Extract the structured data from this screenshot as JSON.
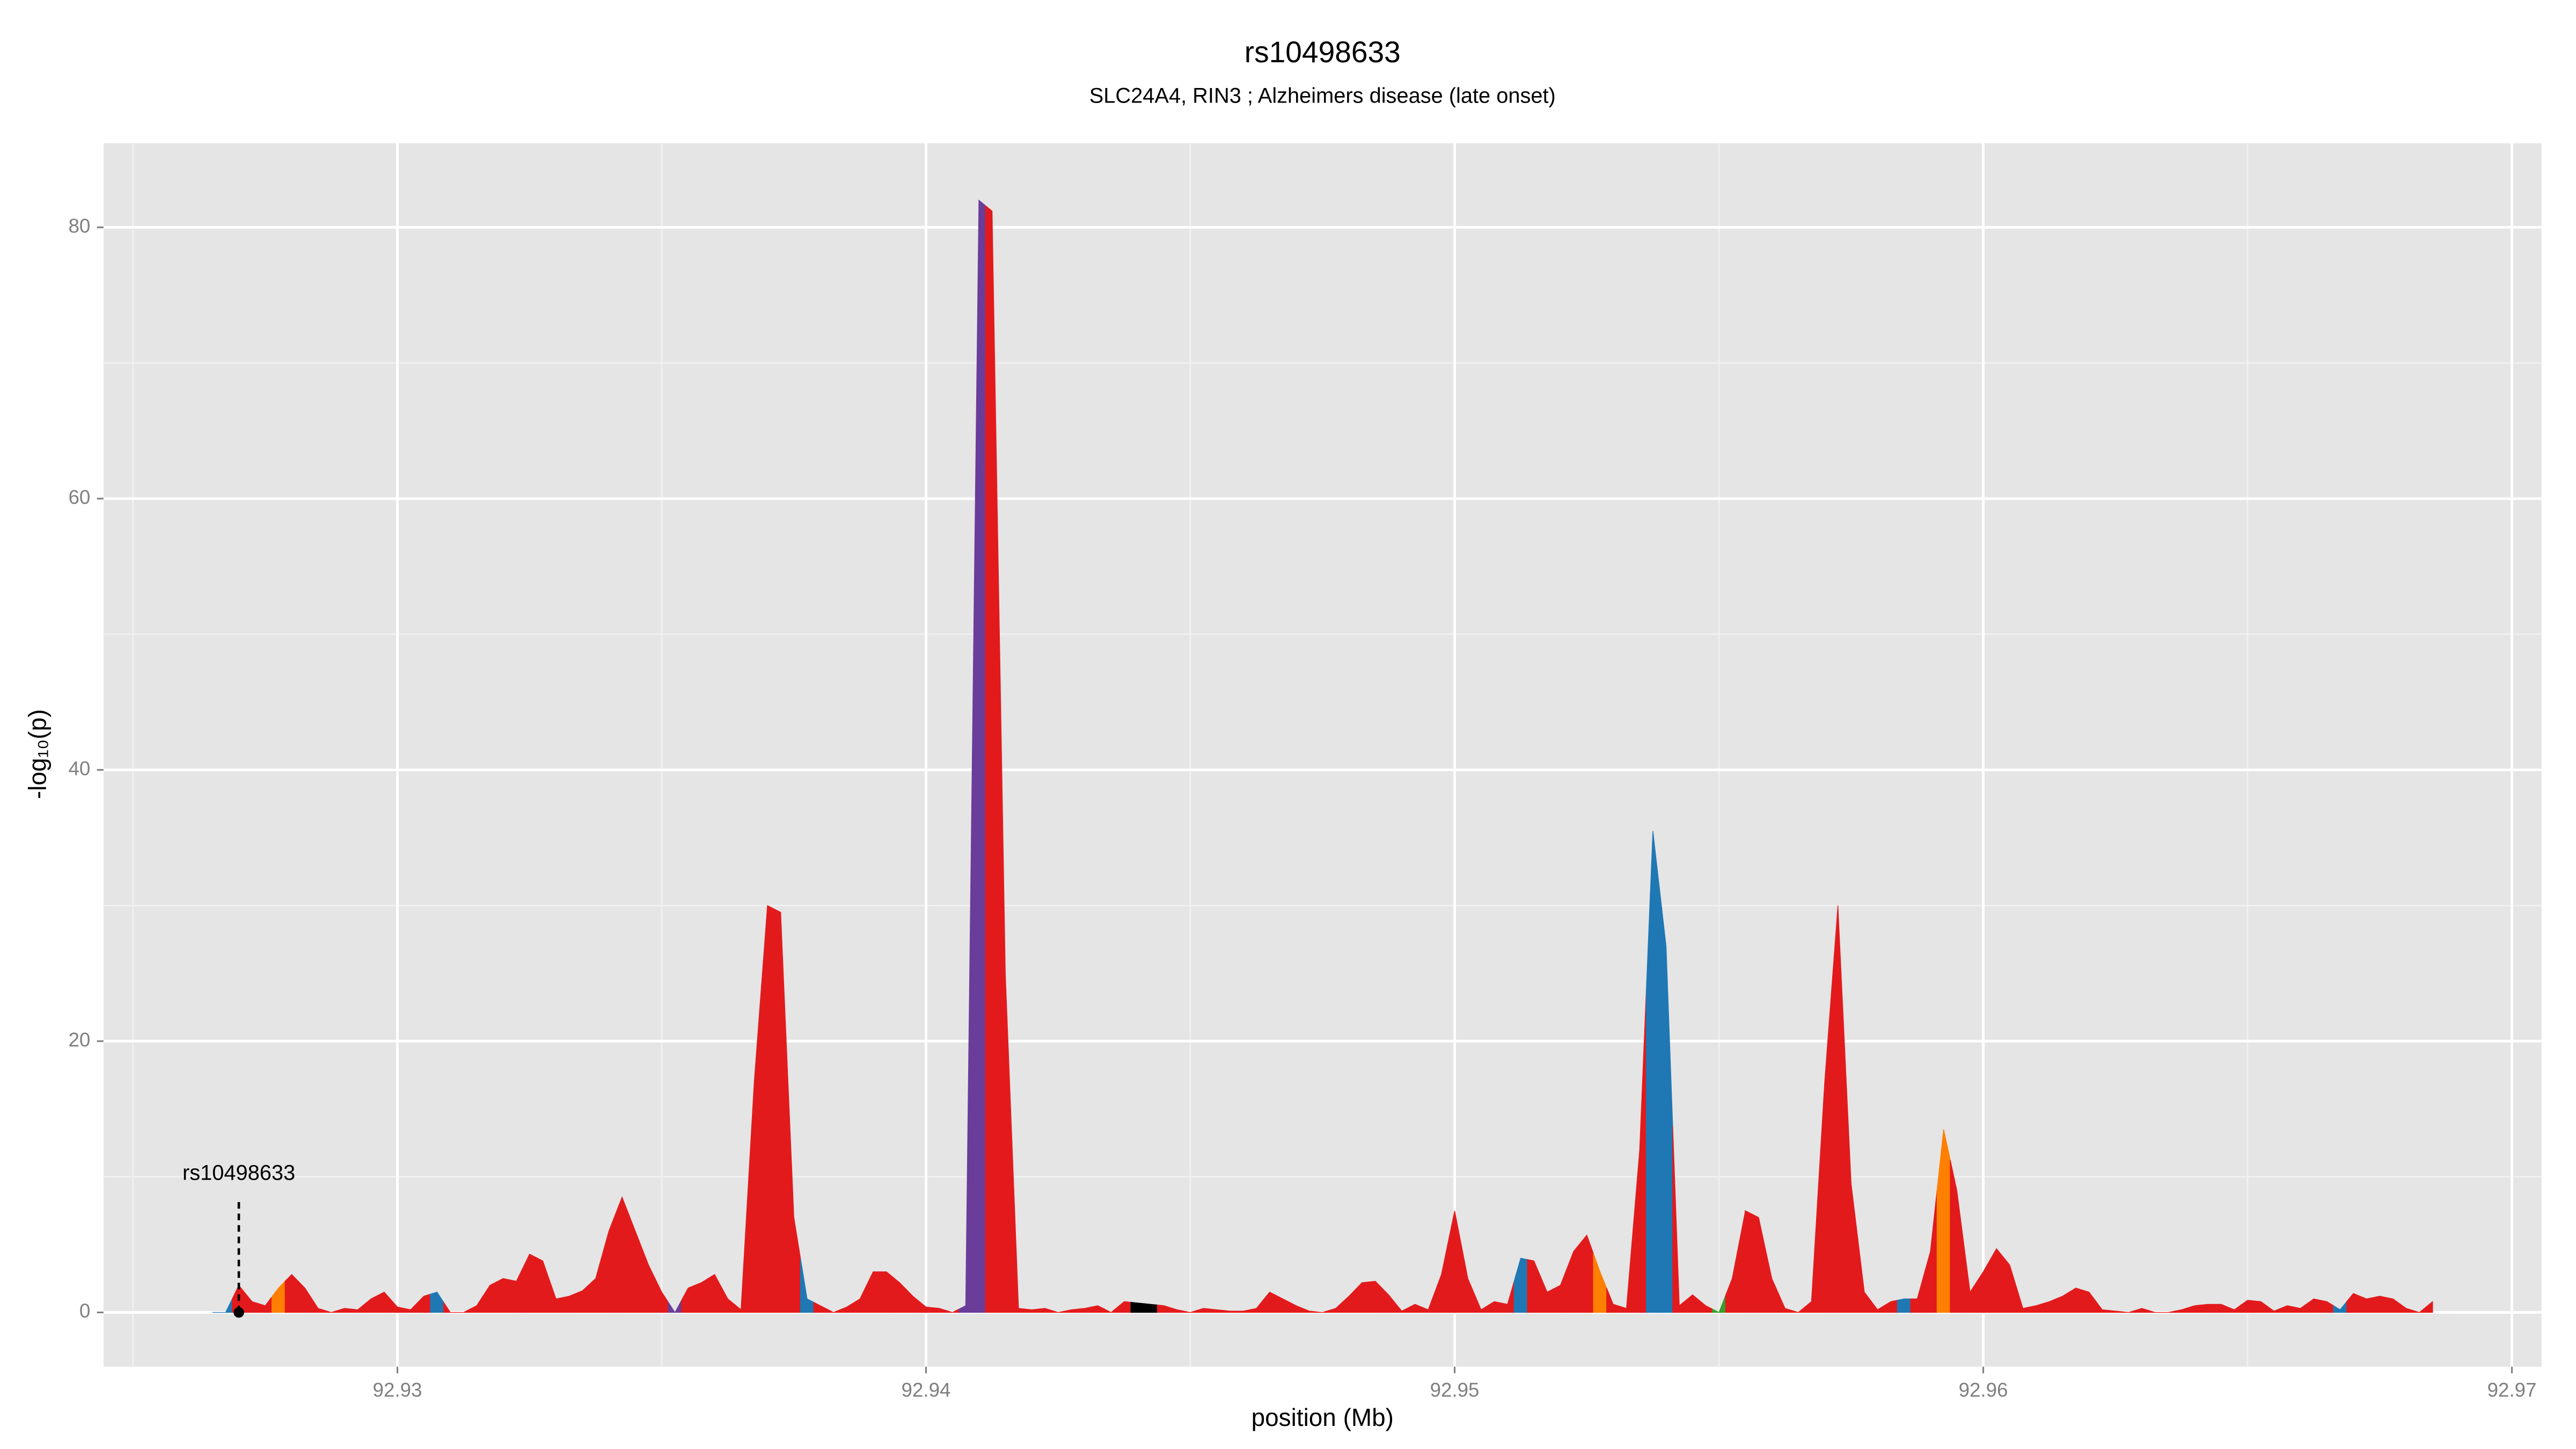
{
  "chart_data": {
    "type": "area",
    "title": "rs10498633",
    "subtitle": "SLC24A4, RIN3 ; Alzheimers disease (late onset)",
    "x_label": "position (Mb)",
    "y_label": "-log₁₀(p)",
    "xlim": [
      92.92444,
      92.97056
    ],
    "ylim": [
      -4.0,
      86.2
    ],
    "xticks": [
      92.93,
      92.94,
      92.95,
      92.96,
      92.97
    ],
    "yticks": [
      0,
      20,
      40,
      60,
      80
    ],
    "x_minor_grid": [
      92.925,
      92.935,
      92.945,
      92.955,
      92.965
    ],
    "y_minor_grid": [
      10,
      30,
      50,
      70
    ],
    "grid": true,
    "annotation": {
      "label": "rs10498633",
      "x": 92.927,
      "y": 0
    },
    "x": [
      92.9265,
      92.92675,
      92.927,
      92.92725,
      92.9275,
      92.92775,
      92.928,
      92.92825,
      92.9285,
      92.92875,
      92.929,
      92.92925,
      92.9295,
      92.92975,
      92.93,
      92.93025,
      92.9305,
      92.93075,
      92.931,
      92.93125,
      92.9315,
      92.93175,
      92.932,
      92.93225,
      92.9325,
      92.93275,
      92.933,
      92.93325,
      92.9335,
      92.93375,
      92.934,
      92.93425,
      92.9345,
      92.93475,
      92.935,
      92.93525,
      92.9355,
      92.93575,
      92.936,
      92.93625,
      92.9365,
      92.93675,
      92.937,
      92.93725,
      92.9375,
      92.93775,
      92.938,
      92.93825,
      92.9385,
      92.93875,
      92.939,
      92.93925,
      92.9395,
      92.93975,
      92.94,
      92.94025,
      92.9405,
      92.94075,
      92.941,
      92.94125,
      92.9415,
      92.94175,
      92.942,
      92.94225,
      92.9425,
      92.94275,
      92.943,
      92.94325,
      92.9435,
      92.94375,
      92.944,
      92.94425,
      92.9445,
      92.94475,
      92.945,
      92.94525,
      92.9455,
      92.94575,
      92.946,
      92.94625,
      92.9465,
      92.94675,
      92.947,
      92.94725,
      92.9475,
      92.94775,
      92.948,
      92.94825,
      92.9485,
      92.94875,
      92.949,
      92.94925,
      92.9495,
      92.94975,
      92.95,
      92.95025,
      92.9505,
      92.95075,
      92.951,
      92.95125,
      92.9515,
      92.95175,
      92.952,
      92.95225,
      92.9525,
      92.95275,
      92.953,
      92.95325,
      92.9535,
      92.95375,
      92.954,
      92.95425,
      92.9545,
      92.95475,
      92.955,
      92.95525,
      92.9555,
      92.95575,
      92.956,
      92.95625,
      92.9565,
      92.95675,
      92.957,
      92.95725,
      92.9575,
      92.95775,
      92.958,
      92.95825,
      92.9585,
      92.95875,
      92.959,
      92.95925,
      92.9595,
      92.95975,
      92.96,
      92.96025,
      92.9605,
      92.96075,
      92.961,
      92.96125,
      92.9615,
      92.96175,
      92.962,
      92.96225,
      92.9625,
      92.96275,
      92.963,
      92.96325,
      92.9635,
      92.96375,
      92.964,
      92.96425,
      92.9645,
      92.96475,
      92.965,
      92.96525,
      92.9655,
      92.96575,
      92.966,
      92.96625,
      92.9665,
      92.96675,
      92.967,
      92.96725,
      92.9675,
      92.96775,
      92.968,
      92.96825,
      92.9685
    ],
    "values": [
      0,
      0,
      2,
      0.8,
      0.5,
      1.8,
      2.8,
      1.8,
      0.3,
      0,
      0.3,
      0.2,
      1,
      1.5,
      0.4,
      0.2,
      1.2,
      1.5,
      0,
      0,
      0.5,
      2,
      2.5,
      2.3,
      4.3,
      3.8,
      1,
      1.2,
      1.6,
      2.5,
      6,
      8.5,
      6,
      3.5,
      1.5,
      0,
      1.8,
      2.2,
      2.8,
      1,
      0.2,
      17,
      30,
      29.5,
      7,
      1,
      0.5,
      0,
      0.4,
      1,
      3,
      3,
      2.2,
      1.2,
      0.4,
      0.3,
      0,
      0.5,
      82,
      81.2,
      25,
      0.3,
      0.2,
      0.3,
      0,
      0.2,
      0.3,
      0.5,
      0,
      0.8,
      0.7,
      0.6,
      0.5,
      0.2,
      0,
      0.3,
      0.2,
      0.1,
      0.1,
      0.3,
      1.5,
      1,
      0.5,
      0.1,
      0,
      0.3,
      1.2,
      2.2,
      2.3,
      1.3,
      0.1,
      0.6,
      0.2,
      2.8,
      7.5,
      2.5,
      0.2,
      0.8,
      0.6,
      4,
      3.8,
      1.5,
      2,
      4.5,
      5.7,
      3,
      0.6,
      0.3,
      12,
      35.5,
      27,
      0.5,
      1.3,
      0.5,
      0,
      2.5,
      7.5,
      7,
      2.5,
      0.3,
      0,
      0.8,
      17,
      30,
      9.5,
      1.5,
      0.2,
      0.8,
      1,
      1,
      4.5,
      13.5,
      9,
      1.5,
      3,
      4.7,
      3.5,
      0.3,
      0.5,
      0.8,
      1.2,
      1.8,
      1.5,
      0.2,
      0.1,
      0,
      0.3,
      0,
      0,
      0.2,
      0.5,
      0.6,
      0.6,
      0.2,
      0.9,
      0.8,
      0.1,
      0.5,
      0.3,
      1,
      0.8,
      0.2,
      1.4,
      1,
      1.2,
      1,
      0.3,
      0,
      0.8
    ],
    "colors": [
      "#1f78b4",
      "#1f78b4",
      "#e31a1c",
      "#e31a1c",
      "#e31a1c",
      "#ff7f00",
      "#e31a1c",
      "#e31a1c",
      "#e31a1c",
      "#e31a1c",
      "#e31a1c",
      "#e31a1c",
      "#e31a1c",
      "#e31a1c",
      "#e31a1c",
      "#e31a1c",
      "#e31a1c",
      "#1f78b4",
      "#e31a1c",
      "#e31a1c",
      "#e31a1c",
      "#e31a1c",
      "#e31a1c",
      "#e31a1c",
      "#e31a1c",
      "#e31a1c",
      "#e31a1c",
      "#e31a1c",
      "#e31a1c",
      "#e31a1c",
      "#e31a1c",
      "#e31a1c",
      "#e31a1c",
      "#e31a1c",
      "#e31a1c",
      "#6a3d9a",
      "#e31a1c",
      "#e31a1c",
      "#e31a1c",
      "#e31a1c",
      "#e31a1c",
      "#e31a1c",
      "#e31a1c",
      "#e31a1c",
      "#e31a1c",
      "#1f78b4",
      "#e31a1c",
      "#e31a1c",
      "#e31a1c",
      "#e31a1c",
      "#e31a1c",
      "#e31a1c",
      "#e31a1c",
      "#e31a1c",
      "#e31a1c",
      "#e31a1c",
      "#e31a1c",
      "#6a3d9a",
      "#6a3d9a",
      "#e31a1c",
      "#e31a1c",
      "#e31a1c",
      "#e31a1c",
      "#e31a1c",
      "#e31a1c",
      "#e31a1c",
      "#e31a1c",
      "#e31a1c",
      "#e31a1c",
      "#e31a1c",
      "#000000",
      "#000000",
      "#e31a1c",
      "#e31a1c",
      "#e31a1c",
      "#e31a1c",
      "#e31a1c",
      "#e31a1c",
      "#e31a1c",
      "#e31a1c",
      "#e31a1c",
      "#e31a1c",
      "#e31a1c",
      "#e31a1c",
      "#e31a1c",
      "#e31a1c",
      "#e31a1c",
      "#e31a1c",
      "#e31a1c",
      "#e31a1c",
      "#e31a1c",
      "#e31a1c",
      "#e31a1c",
      "#e31a1c",
      "#e31a1c",
      "#e31a1c",
      "#e31a1c",
      "#e31a1c",
      "#e31a1c",
      "#1f78b4",
      "#e31a1c",
      "#e31a1c",
      "#e31a1c",
      "#e31a1c",
      "#e31a1c",
      "#ff7f00",
      "#e31a1c",
      "#e31a1c",
      "#e31a1c",
      "#1f78b4",
      "#1f78b4",
      "#e31a1c",
      "#e31a1c",
      "#e31a1c",
      "#33a02c",
      "#e31a1c",
      "#e31a1c",
      "#e31a1c",
      "#e31a1c",
      "#e31a1c",
      "#e31a1c",
      "#e31a1c",
      "#e31a1c",
      "#e31a1c",
      "#e31a1c",
      "#e31a1c",
      "#e31a1c",
      "#e31a1c",
      "#1f78b4",
      "#e31a1c",
      "#e31a1c",
      "#ff7f00",
      "#e31a1c",
      "#e31a1c",
      "#e31a1c",
      "#e31a1c",
      "#e31a1c",
      "#e31a1c",
      "#e31a1c",
      "#e31a1c",
      "#e31a1c",
      "#e31a1c",
      "#e31a1c",
      "#e31a1c",
      "#e31a1c",
      "#e31a1c",
      "#e31a1c",
      "#e31a1c",
      "#e31a1c",
      "#e31a1c",
      "#e31a1c",
      "#e31a1c",
      "#e31a1c",
      "#e31a1c",
      "#e31a1c",
      "#e31a1c",
      "#e31a1c",
      "#e31a1c",
      "#e31a1c",
      "#e31a1c",
      "#e31a1c",
      "#1f78b4",
      "#e31a1c",
      "#e31a1c",
      "#e31a1c",
      "#e31a1c",
      "#e31a1c",
      "#e31a1c",
      "#e31a1c",
      "#1f78b4",
      "#1f78b4"
    ]
  }
}
